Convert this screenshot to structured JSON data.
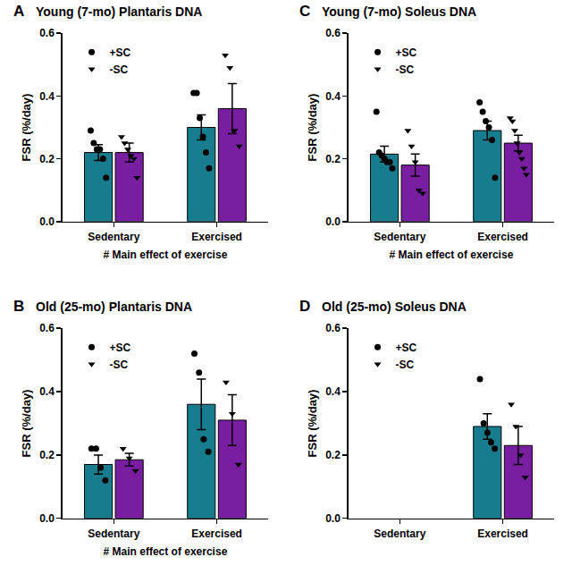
{
  "chart_data": [
    {
      "type": "bar",
      "panel": "A",
      "title": "Young (7-mo) Plantaris DNA",
      "categories": [
        "Sedentary",
        "Exercised"
      ],
      "ylabel": "FSR (%/day)",
      "xlabel": "# Main effect of exercise",
      "ylim": [
        0,
        0.6
      ],
      "yticks": [
        {
          "value": 0,
          "label": "0.0"
        },
        0.2,
        0.4,
        0.6
      ],
      "grid": false,
      "legend": "upper left",
      "series": [
        {
          "name": "+SC",
          "color": "#187c8f",
          "marker": "circle",
          "values": [
            0.22,
            0.3
          ],
          "errors": [
            0.025,
            0.04
          ],
          "points": [
            [
              0.29,
              0.25,
              0.23,
              0.23,
              0.2,
              0.14
            ],
            [
              0.41,
              0.41,
              0.33,
              0.27,
              0.22,
              0.17
            ]
          ]
        },
        {
          "name": "-SC",
          "color": "#7a1ea1",
          "marker": "triangle-down",
          "values": [
            0.22,
            0.36
          ],
          "errors": [
            0.03,
            0.08
          ],
          "points": [
            [
              0.27,
              0.25,
              0.23,
              0.21,
              0.2,
              0.14
            ],
            [
              0.53,
              0.49,
              0.29,
              0.24
            ]
          ]
        }
      ]
    },
    {
      "type": "bar",
      "panel": "B",
      "title": "Old (25-mo) Plantaris DNA",
      "categories": [
        "Sedentary",
        "Exercised"
      ],
      "ylabel": "FSR (%/day)",
      "xlabel": "# Main effect of exercise",
      "ylim": [
        0,
        0.6
      ],
      "yticks": [
        {
          "value": 0,
          "label": "0.0"
        },
        0.2,
        0.4,
        0.6
      ],
      "grid": false,
      "legend": "upper left",
      "series": [
        {
          "name": "+SC",
          "color": "#187c8f",
          "marker": "circle",
          "values": [
            0.17,
            0.36
          ],
          "errors": [
            0.03,
            0.08
          ],
          "points": [
            [
              0.22,
              0.22,
              0.16,
              0.12
            ],
            [
              0.52,
              0.46,
              0.25,
              0.21
            ]
          ]
        },
        {
          "name": "-SC",
          "color": "#7a1ea1",
          "marker": "triangle-down",
          "values": [
            0.185,
            0.31
          ],
          "errors": [
            0.02,
            0.08
          ],
          "points": [
            [
              0.22,
              0.19,
              0.15
            ],
            [
              0.43,
              0.33,
              0.17
            ]
          ]
        }
      ]
    },
    {
      "type": "bar",
      "panel": "C",
      "title": "Young (7-mo) Soleus DNA",
      "categories": [
        "Sedentary",
        "Exercised"
      ],
      "ylabel": "FSR (%/day)",
      "xlabel": "# Main effect of exercise",
      "ylim": [
        0,
        0.6
      ],
      "yticks": [
        {
          "value": 0,
          "label": "0.0"
        },
        0.2,
        0.4,
        0.6
      ],
      "grid": false,
      "legend": "upper left",
      "series": [
        {
          "name": "+SC",
          "color": "#187c8f",
          "marker": "circle",
          "values": [
            0.215,
            0.29
          ],
          "errors": [
            0.025,
            0.03
          ],
          "points": [
            [
              0.35,
              0.22,
              0.21,
              0.2,
              0.19,
              0.19,
              0.17
            ],
            [
              0.38,
              0.35,
              0.32,
              0.3,
              0.26,
              0.14
            ]
          ]
        },
        {
          "name": "-SC",
          "color": "#7a1ea1",
          "marker": "triangle-down",
          "values": [
            0.18,
            0.25
          ],
          "errors": [
            0.035,
            0.025
          ],
          "points": [
            [
              0.29,
              0.24,
              0.19,
              0.1,
              0.09
            ],
            [
              0.33,
              0.32,
              0.29,
              0.25,
              0.22,
              0.2,
              0.17,
              0.15
            ]
          ]
        }
      ]
    },
    {
      "type": "bar",
      "panel": "D",
      "title": "Old (25-mo) Soleus DNA",
      "categories": [
        "Sedentary",
        "Exercised"
      ],
      "ylabel": "FSR (%/day)",
      "ylim": [
        0,
        0.6
      ],
      "yticks": [
        {
          "value": 0,
          "label": "0.0"
        },
        0.2,
        0.4,
        0.6
      ],
      "grid": false,
      "legend": "upper left",
      "series": [
        {
          "name": "+SC",
          "color": "#187c8f",
          "marker": "circle",
          "values": [
            null,
            0.29
          ],
          "errors": [
            null,
            0.04
          ],
          "points": [
            [],
            [
              0.44,
              0.3,
              0.27,
              0.24,
              0.22
            ]
          ]
        },
        {
          "name": "-SC",
          "color": "#7a1ea1",
          "marker": "triangle-down",
          "values": [
            null,
            0.23
          ],
          "errors": [
            null,
            0.06
          ],
          "points": [
            [],
            [
              0.36,
              0.29,
              0.2,
              0.13
            ]
          ]
        }
      ]
    }
  ]
}
